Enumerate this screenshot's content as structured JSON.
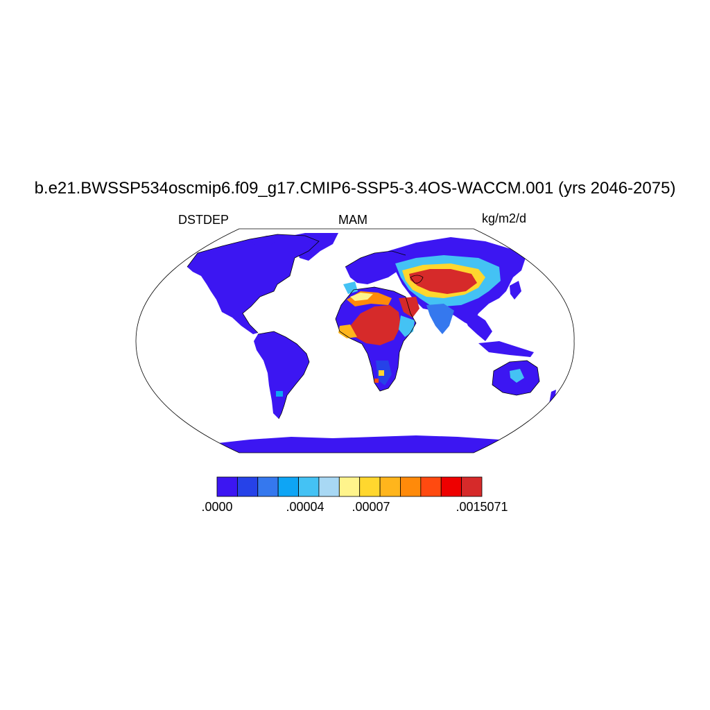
{
  "title": "b.e21.BWSSP534oscmip6.f09_g17.CMIP6-SSP5-3.4OS-WACCM.001 (yrs 2046-2075)",
  "variable": "DSTDEP",
  "season": "MAM",
  "units": "kg/m2/d",
  "projection": "Robinson",
  "colorbar": {
    "colors": [
      "#3c16f2",
      "#2642e8",
      "#3578ee",
      "#0ea5f5",
      "#44c2f4",
      "#a8d8f4",
      "#fff48c",
      "#ffd72e",
      "#ffb51c",
      "#ff8a0a",
      "#ff4a10",
      "#ee0000",
      "#d62a2a"
    ],
    "labels": [
      ".0000",
      ".00004",
      ".00007",
      ".0015071"
    ]
  },
  "colors": {
    "ocean": "#ffffff",
    "land_low": "#3c16f2",
    "coast": "#000000"
  }
}
